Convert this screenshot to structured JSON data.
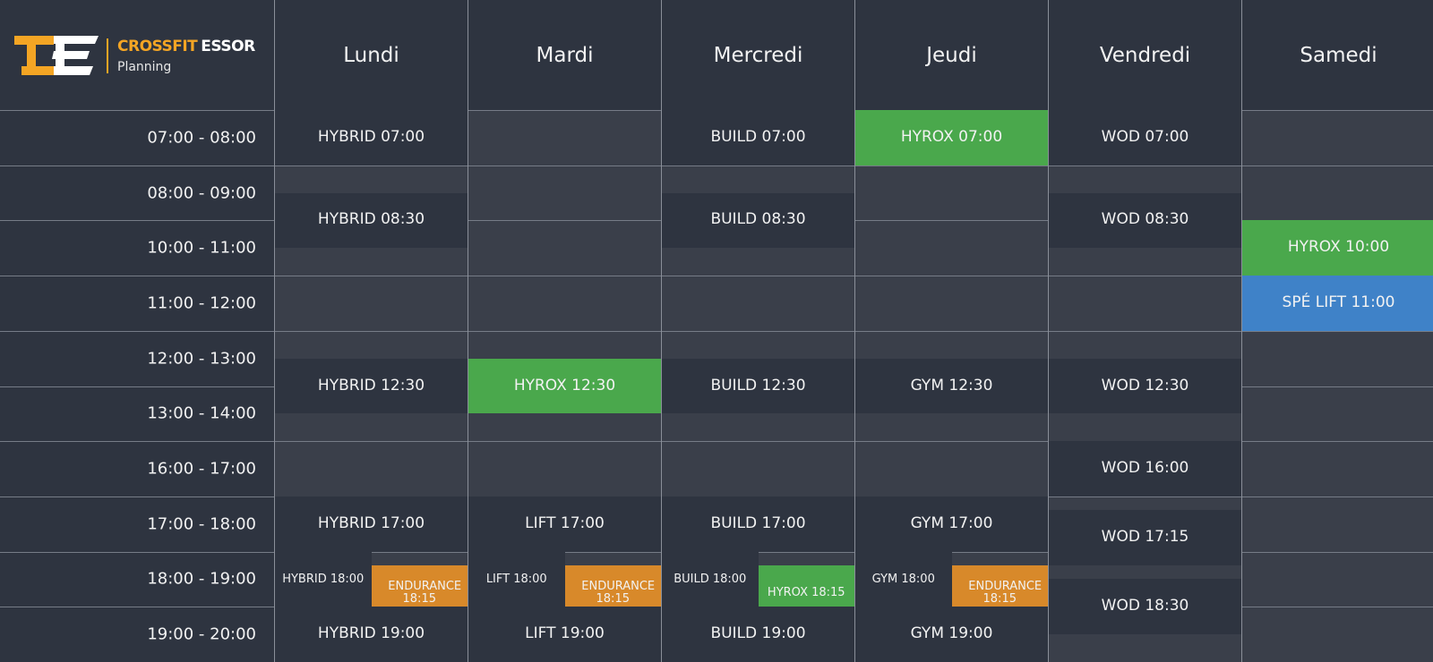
{
  "brand": {
    "name_part1": "CROSSFIT",
    "name_part2": "ESSOR",
    "subtitle": "Planning"
  },
  "colors": {
    "accent_orange": "#f4a524",
    "green": "#4aa84c",
    "orange": "#d8892a",
    "blue": "#3f82c8",
    "dark_cell": "#2e3440",
    "empty_cell": "#3a3f4a"
  },
  "days": [
    "Lundi",
    "Mardi",
    "Mercredi",
    "Jeudi",
    "Vendredi",
    "Samedi"
  ],
  "time_slots": [
    "07:00 - 08:00",
    "08:00 - 09:00",
    "10:00 - 11:00",
    "11:00 - 12:00",
    "12:00 - 13:00",
    "13:00 - 14:00",
    "16:00 - 17:00",
    "17:00 - 18:00",
    "18:00 - 19:00",
    "19:00 - 20:00"
  ],
  "classes": [
    {
      "label": "HYBRID 07:00",
      "day": "Lundi",
      "start": "07:00",
      "color": "dark"
    },
    {
      "label": "HYBRID 08:30",
      "day": "Lundi",
      "start": "08:30",
      "color": "dark"
    },
    {
      "label": "HYBRID 12:30",
      "day": "Lundi",
      "start": "12:30",
      "color": "dark"
    },
    {
      "label": "HYBRID 17:00",
      "day": "Lundi",
      "start": "17:00",
      "color": "dark"
    },
    {
      "label": "HYBRID 18:00",
      "day": "Lundi",
      "start": "18:00",
      "color": "dark"
    },
    {
      "label": "ENDURANCE 18:15",
      "day": "Lundi",
      "start": "18:15",
      "color": "orange"
    },
    {
      "label": "HYBRID 19:00",
      "day": "Lundi",
      "start": "19:00",
      "color": "dark"
    },
    {
      "label": "HYROX 12:30",
      "day": "Mardi",
      "start": "12:30",
      "color": "green"
    },
    {
      "label": "LIFT 17:00",
      "day": "Mardi",
      "start": "17:00",
      "color": "dark"
    },
    {
      "label": "LIFT 18:00",
      "day": "Mardi",
      "start": "18:00",
      "color": "dark"
    },
    {
      "label": "ENDURANCE 18:15",
      "day": "Mardi",
      "start": "18:15",
      "color": "orange"
    },
    {
      "label": "LIFT 19:00",
      "day": "Mardi",
      "start": "19:00",
      "color": "dark"
    },
    {
      "label": "BUILD 07:00",
      "day": "Mercredi",
      "start": "07:00",
      "color": "dark"
    },
    {
      "label": "BUILD 08:30",
      "day": "Mercredi",
      "start": "08:30",
      "color": "dark"
    },
    {
      "label": "BUILD 12:30",
      "day": "Mercredi",
      "start": "12:30",
      "color": "dark"
    },
    {
      "label": "BUILD 17:00",
      "day": "Mercredi",
      "start": "17:00",
      "color": "dark"
    },
    {
      "label": "BUILD 18:00",
      "day": "Mercredi",
      "start": "18:00",
      "color": "dark"
    },
    {
      "label": "HYROX 18:15",
      "day": "Mercredi",
      "start": "18:15",
      "color": "green"
    },
    {
      "label": "BUILD 19:00",
      "day": "Mercredi",
      "start": "19:00",
      "color": "dark"
    },
    {
      "label": "HYROX 07:00",
      "day": "Jeudi",
      "start": "07:00",
      "color": "green"
    },
    {
      "label": "GYM 12:30",
      "day": "Jeudi",
      "start": "12:30",
      "color": "dark"
    },
    {
      "label": "GYM 17:00",
      "day": "Jeudi",
      "start": "17:00",
      "color": "dark"
    },
    {
      "label": "GYM 18:00",
      "day": "Jeudi",
      "start": "18:00",
      "color": "dark"
    },
    {
      "label": "ENDURANCE 18:15",
      "day": "Jeudi",
      "start": "18:15",
      "color": "orange"
    },
    {
      "label": "GYM 19:00",
      "day": "Jeudi",
      "start": "19:00",
      "color": "dark"
    },
    {
      "label": "WOD 07:00",
      "day": "Vendredi",
      "start": "07:00",
      "color": "dark"
    },
    {
      "label": "WOD 08:30",
      "day": "Vendredi",
      "start": "08:30",
      "color": "dark"
    },
    {
      "label": "WOD 12:30",
      "day": "Vendredi",
      "start": "12:30",
      "color": "dark"
    },
    {
      "label": "WOD 16:00",
      "day": "Vendredi",
      "start": "16:00",
      "color": "dark"
    },
    {
      "label": "WOD 17:15",
      "day": "Vendredi",
      "start": "17:15",
      "color": "dark"
    },
    {
      "label": "WOD 18:30",
      "day": "Vendredi",
      "start": "18:30",
      "color": "dark"
    },
    {
      "label": "HYROX 10:00",
      "day": "Samedi",
      "start": "10:00",
      "color": "green"
    },
    {
      "label": "SPÉ LIFT 11:00",
      "day": "Samedi",
      "start": "11:00",
      "color": "blue"
    }
  ]
}
